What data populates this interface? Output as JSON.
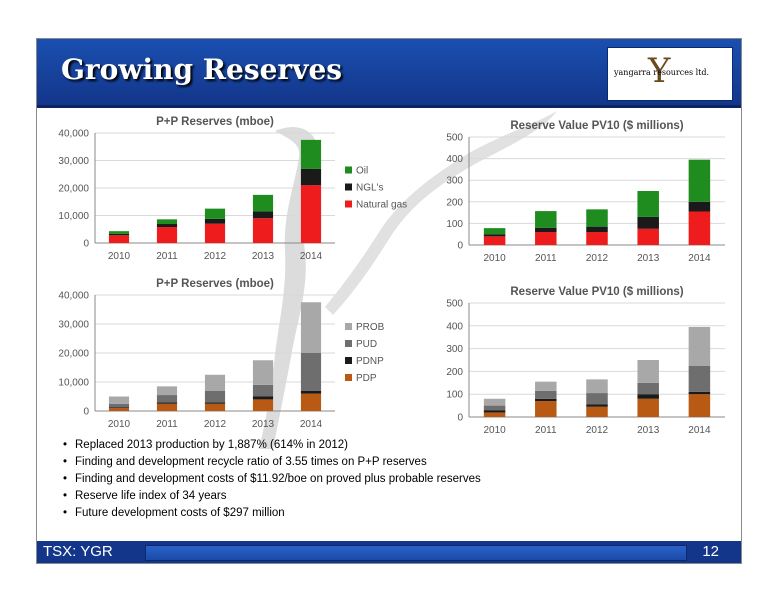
{
  "header": {
    "title": "Growing Reserves",
    "logo_text": "yangarra resources ltd.",
    "logo_letter": "Y"
  },
  "footer": {
    "ticker": "TSX: YGR",
    "page_number": "12"
  },
  "bullets": [
    "Replaced 2013 production by 1,887% (614% in 2012)",
    "Finding and development recycle ratio of 3.55 times on P+P reserves",
    "Finding and development costs of $11.92/boe on proved plus probable reserves",
    "Reserve life index of 34 years",
    "Future development costs of $297 million"
  ],
  "chart_data": [
    {
      "type": "bar",
      "stacked": true,
      "title": "P+P Reserves (mboe)",
      "categories": [
        "2010",
        "2011",
        "2012",
        "2013",
        "2014"
      ],
      "ylim": [
        0,
        40000
      ],
      "yticks": [
        0,
        10000,
        20000,
        30000,
        40000
      ],
      "ytick_labels": [
        "0",
        "10,000",
        "20,000",
        "30,000",
        "40,000"
      ],
      "gridlines": true,
      "legend": "right",
      "series": [
        {
          "name": "Natural gas",
          "color": "#ee1c1c",
          "values": [
            2800,
            5800,
            7000,
            9000,
            21000
          ]
        },
        {
          "name": "NGL's",
          "color": "#1a1a1a",
          "values": [
            500,
            1100,
            1800,
            2500,
            6000
          ]
        },
        {
          "name": "Oil",
          "color": "#1e8c1e",
          "values": [
            1000,
            1700,
            3700,
            6000,
            10500
          ]
        }
      ]
    },
    {
      "type": "bar",
      "stacked": true,
      "title": "Reserve Value PV10 ($ millions)",
      "categories": [
        "2010",
        "2011",
        "2012",
        "2013",
        "2014"
      ],
      "ylim": [
        0,
        500
      ],
      "yticks": [
        0,
        100,
        200,
        300,
        400,
        500
      ],
      "ytick_labels": [
        "0",
        "100",
        "200",
        "300",
        "400",
        "500"
      ],
      "gridlines": true,
      "legend": "none",
      "series": [
        {
          "name": "Natural gas",
          "color": "#ee1c1c",
          "values": [
            40,
            60,
            60,
            75,
            155
          ]
        },
        {
          "name": "NGL's",
          "color": "#1a1a1a",
          "values": [
            10,
            20,
            25,
            55,
            45
          ]
        },
        {
          "name": "Oil",
          "color": "#1e8c1e",
          "values": [
            28,
            77,
            80,
            120,
            195
          ]
        }
      ]
    },
    {
      "type": "bar",
      "stacked": true,
      "title": "P+P Reserves (mboe)",
      "categories": [
        "2010",
        "2011",
        "2012",
        "2013",
        "2014"
      ],
      "ylim": [
        0,
        40000
      ],
      "yticks": [
        0,
        10000,
        20000,
        30000,
        40000
      ],
      "ytick_labels": [
        "0",
        "10,000",
        "20,000",
        "30,000",
        "40,000"
      ],
      "gridlines": true,
      "legend": "right",
      "series": [
        {
          "name": "PDP",
          "color": "#b85a14",
          "values": [
            1000,
            2500,
            2500,
            4000,
            6000
          ]
        },
        {
          "name": "PDNP",
          "color": "#1a1a1a",
          "values": [
            200,
            500,
            500,
            1000,
            1000
          ]
        },
        {
          "name": "PUD",
          "color": "#6e6e6e",
          "values": [
            1300,
            2500,
            4000,
            4000,
            13000
          ]
        },
        {
          "name": "PROB",
          "color": "#a8a8a8",
          "values": [
            2500,
            3000,
            5500,
            8500,
            17500
          ]
        }
      ]
    },
    {
      "type": "bar",
      "stacked": true,
      "title": "Reserve Value PV10 ($ millions)",
      "categories": [
        "2010",
        "2011",
        "2012",
        "2013",
        "2014"
      ],
      "ylim": [
        0,
        500
      ],
      "yticks": [
        0,
        100,
        200,
        300,
        400,
        500
      ],
      "ytick_labels": [
        "0",
        "100",
        "200",
        "300",
        "400",
        "500"
      ],
      "gridlines": true,
      "legend": "none",
      "series": [
        {
          "name": "PDP",
          "color": "#b85a14",
          "values": [
            20,
            70,
            45,
            80,
            100
          ]
        },
        {
          "name": "PDNP",
          "color": "#1a1a1a",
          "values": [
            10,
            10,
            10,
            20,
            10
          ]
        },
        {
          "name": "PUD",
          "color": "#6e6e6e",
          "values": [
            20,
            35,
            50,
            50,
            115
          ]
        },
        {
          "name": "PROB",
          "color": "#a8a8a8",
          "values": [
            30,
            40,
            60,
            100,
            170
          ]
        }
      ]
    }
  ]
}
